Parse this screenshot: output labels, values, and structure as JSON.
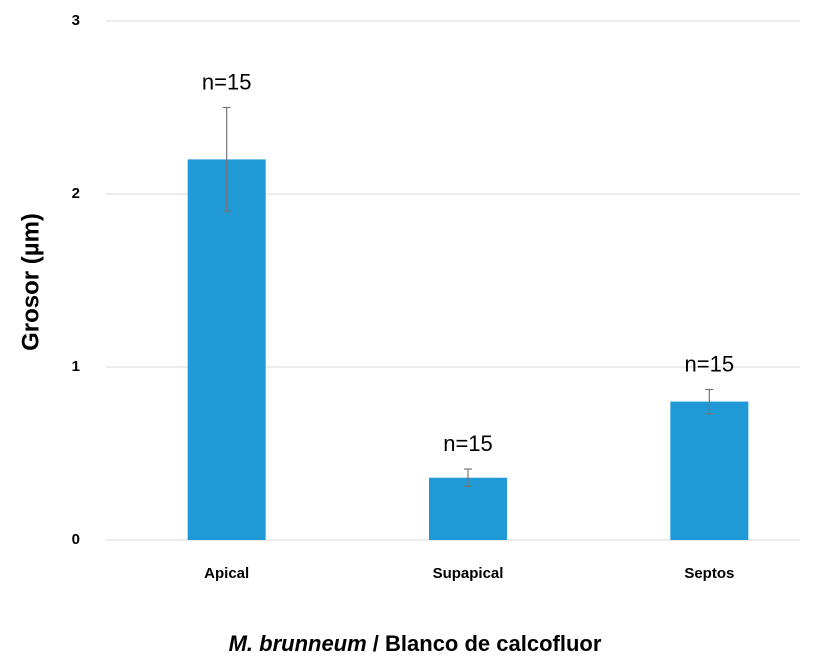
{
  "chart_data": {
    "type": "bar",
    "categories": [
      "Apical",
      "Supapical",
      "Septos"
    ],
    "values": [
      2.2,
      0.36,
      0.8
    ],
    "errors": [
      0.3,
      0.05,
      0.07
    ],
    "annotations": [
      "n=15",
      "n=15",
      "n=15"
    ],
    "color": "#1f9ad6",
    "ylabel": "Grosor (µm)",
    "xlabel_species": "M. brunneum",
    "xlabel_rest": " / Blanco de calcofluor",
    "ylim": [
      0,
      3
    ],
    "yticks": [
      0,
      1,
      2,
      3
    ],
    "grid": true
  }
}
